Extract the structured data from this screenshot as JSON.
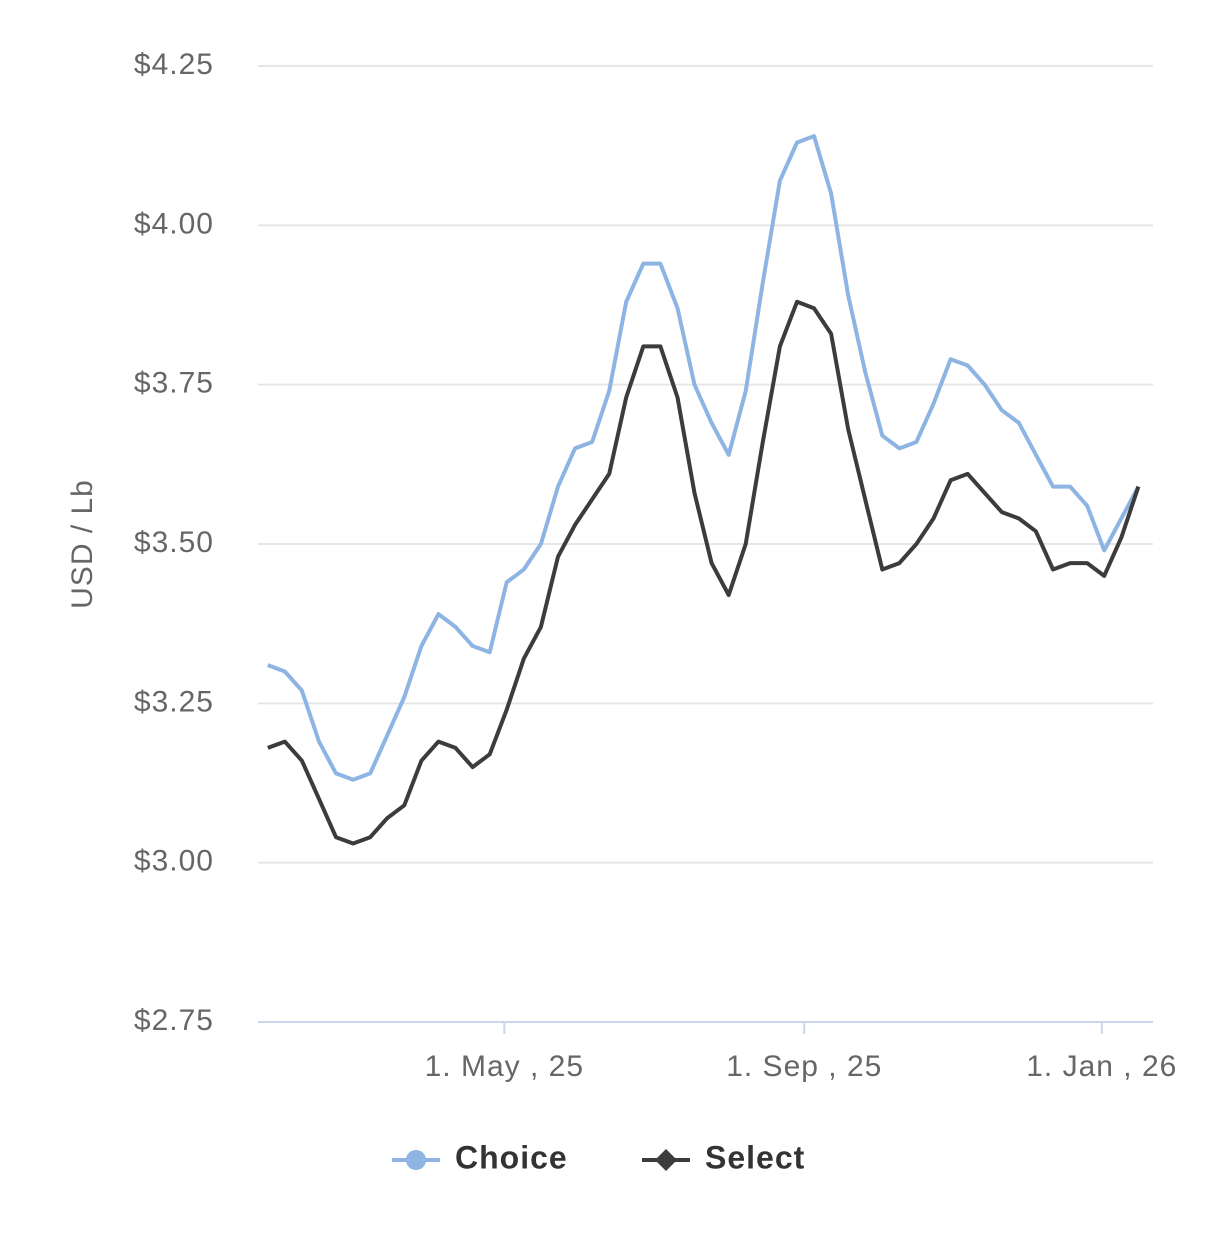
{
  "chart_data": {
    "type": "line",
    "y_label": "USD / Lb",
    "x": [
      "2025-01-24",
      "2025-01-31",
      "2025-02-07",
      "2025-02-14",
      "2025-02-21",
      "2025-02-28",
      "2025-03-07",
      "2025-03-14",
      "2025-03-21",
      "2025-03-28",
      "2025-04-04",
      "2025-04-11",
      "2025-04-18",
      "2025-04-25",
      "2025-05-02",
      "2025-05-09",
      "2025-05-16",
      "2025-05-23",
      "2025-05-30",
      "2025-06-06",
      "2025-06-13",
      "2025-06-20",
      "2025-06-27",
      "2025-07-04",
      "2025-07-11",
      "2025-07-18",
      "2025-07-25",
      "2025-08-01",
      "2025-08-08",
      "2025-08-15",
      "2025-08-22",
      "2025-08-29",
      "2025-09-05",
      "2025-09-12",
      "2025-09-19",
      "2025-09-26",
      "2025-10-03",
      "2025-10-10",
      "2025-10-17",
      "2025-10-24",
      "2025-10-31",
      "2025-11-07",
      "2025-11-14",
      "2025-11-21",
      "2025-11-28",
      "2025-12-05",
      "2025-12-12",
      "2025-12-19",
      "2025-12-26",
      "2026-01-02",
      "2026-01-09",
      "2026-01-16"
    ],
    "series": [
      {
        "name": "Choice",
        "color": "#8db4e2",
        "marker": "circle",
        "values": [
          3.31,
          3.3,
          3.27,
          3.19,
          3.14,
          3.13,
          3.14,
          3.2,
          3.26,
          3.34,
          3.39,
          3.37,
          3.34,
          3.33,
          3.44,
          3.46,
          3.5,
          3.59,
          3.65,
          3.66,
          3.74,
          3.88,
          3.94,
          3.94,
          3.87,
          3.75,
          3.69,
          3.64,
          3.74,
          3.91,
          4.07,
          4.13,
          4.14,
          4.05,
          3.89,
          3.77,
          3.67,
          3.65,
          3.66,
          3.72,
          3.79,
          3.78,
          3.75,
          3.71,
          3.69,
          3.64,
          3.59,
          3.59,
          3.56,
          3.49,
          3.54,
          3.59
        ]
      },
      {
        "name": "Select",
        "color": "#3c3c3c",
        "marker": "diamond",
        "values": [
          3.18,
          3.19,
          3.16,
          3.1,
          3.04,
          3.03,
          3.04,
          3.07,
          3.09,
          3.16,
          3.19,
          3.18,
          3.15,
          3.17,
          3.24,
          3.32,
          3.37,
          3.48,
          3.53,
          3.57,
          3.61,
          3.73,
          3.81,
          3.81,
          3.73,
          3.58,
          3.47,
          3.42,
          3.5,
          3.66,
          3.81,
          3.88,
          3.87,
          3.83,
          3.68,
          3.57,
          3.46,
          3.47,
          3.5,
          3.54,
          3.6,
          3.61,
          3.58,
          3.55,
          3.54,
          3.52,
          3.46,
          3.47,
          3.47,
          3.45,
          3.51,
          3.59
        ]
      }
    ],
    "xlim": [
      "2025-01-20",
      "2026-01-22"
    ],
    "xticks": [
      {
        "value": "2025-05-01",
        "label": "1. May , 25"
      },
      {
        "value": "2025-09-01",
        "label": "1. Sep , 25"
      },
      {
        "value": "2026-01-01",
        "label": "1. Jan , 26"
      }
    ],
    "ylim": [
      2.75,
      4.25
    ],
    "yticks": [
      {
        "value": 2.75,
        "label": "$2.75"
      },
      {
        "value": 3.0,
        "label": "$3.00"
      },
      {
        "value": 3.25,
        "label": "$3.25"
      },
      {
        "value": 3.5,
        "label": "$3.50"
      },
      {
        "value": 3.75,
        "label": "$3.75"
      },
      {
        "value": 4.0,
        "label": "$4.00"
      },
      {
        "value": 4.25,
        "label": "$4.25"
      }
    ],
    "grid": true,
    "legend": "bottom"
  }
}
